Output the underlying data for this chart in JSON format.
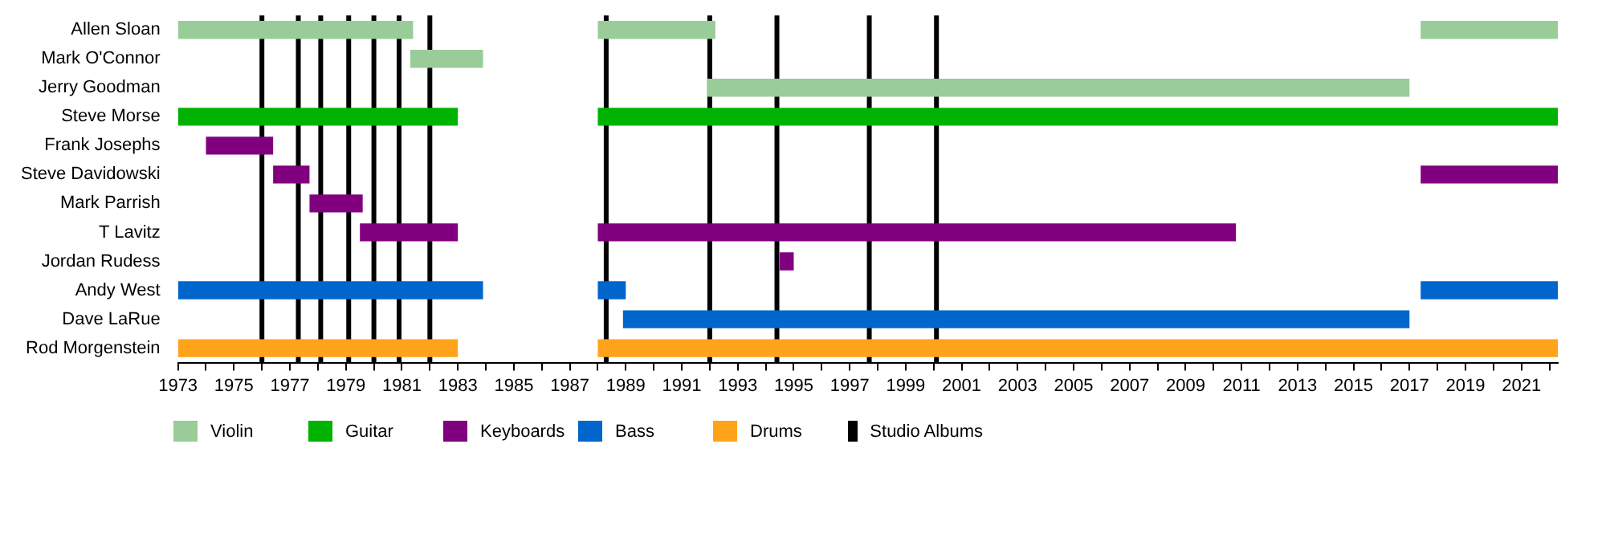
{
  "chart_data": {
    "type": "bar",
    "orientation": "horizontal",
    "legend": "bottom",
    "grid": false,
    "categories": [
      "Allen Sloan",
      "Mark O'Connor",
      "Jerry Goodman",
      "Steve Morse",
      "Frank Josephs",
      "Steve Davidowski",
      "Mark Parrish",
      "T Lavitz",
      "Jordan Rudess",
      "Andy West",
      "Dave LaRue",
      "Rod Morgenstein"
    ],
    "xlim": [
      1973,
      2022.3
    ],
    "xticks": [
      1973,
      {
        "value": 1974,
        "label": null
      },
      1975,
      {
        "value": 1976,
        "label": null
      },
      1977,
      {
        "value": 1978,
        "label": null
      },
      1979,
      {
        "value": 1980,
        "label": null
      },
      1981,
      {
        "value": 1982,
        "label": null
      },
      1983,
      {
        "value": 1984,
        "label": null
      },
      1985,
      {
        "value": 1986,
        "label": null
      },
      1987,
      {
        "value": 1988,
        "label": null
      },
      1989,
      {
        "value": 1990,
        "label": null
      },
      1991,
      {
        "value": 1992,
        "label": null
      },
      1993,
      {
        "value": 1994,
        "label": null
      },
      1995,
      {
        "value": 1996,
        "label": null
      },
      1997,
      {
        "value": 1998,
        "label": null
      },
      1999,
      {
        "value": 2000,
        "label": null
      },
      2001,
      {
        "value": 2002,
        "label": null
      },
      2003,
      {
        "value": 2004,
        "label": null
      },
      2005,
      {
        "value": 2006,
        "label": null
      },
      2007,
      {
        "value": 2008,
        "label": null
      },
      2009,
      {
        "value": 2010,
        "label": null
      },
      2011,
      {
        "value": 2012,
        "label": null
      },
      2013,
      {
        "value": 2014,
        "label": null
      },
      2015,
      {
        "value": 2016,
        "label": null
      },
      2017,
      {
        "value": 2018,
        "label": null
      },
      2019,
      {
        "value": 2020,
        "label": null
      },
      2021,
      {
        "value": 2022,
        "label": null
      }
    ],
    "series": [
      {
        "name": "Violin",
        "color": "#99cc99",
        "base": [
          1973,
          1981.3,
          1991.9,
          null,
          null,
          null,
          null,
          null,
          null,
          null,
          null,
          null
        ],
        "values": [
          8.4,
          2.6,
          25.1,
          null,
          null,
          null,
          null,
          null,
          null,
          null,
          null,
          null
        ]
      },
      {
        "color": "#99cc99",
        "base": [
          1988,
          null,
          null,
          null,
          null,
          null,
          null,
          null,
          null,
          null,
          null,
          null
        ],
        "values": [
          4.2,
          null,
          null,
          null,
          null,
          null,
          null,
          null,
          null,
          null,
          null,
          null
        ]
      },
      {
        "color": "#99cc99",
        "base": [
          2017.4,
          null,
          null,
          null,
          null,
          null,
          null,
          null,
          null,
          null,
          null,
          null
        ],
        "values": [
          4.9,
          null,
          null,
          null,
          null,
          null,
          null,
          null,
          null,
          null,
          null,
          null
        ]
      },
      {
        "name": "Guitar",
        "color": "#00b300",
        "base": [
          null,
          null,
          null,
          1973,
          null,
          null,
          null,
          null,
          null,
          null,
          null,
          null
        ],
        "values": [
          null,
          null,
          null,
          10.0,
          null,
          null,
          null,
          null,
          null,
          null,
          null,
          null
        ]
      },
      {
        "color": "#00b300",
        "base": [
          null,
          null,
          null,
          1988,
          null,
          null,
          null,
          null,
          null,
          null,
          null,
          null
        ],
        "values": [
          null,
          null,
          null,
          34.3,
          null,
          null,
          null,
          null,
          null,
          null,
          null,
          null
        ]
      },
      {
        "name": "Keyboards",
        "color": "#800080",
        "base": [
          null,
          null,
          null,
          null,
          1974,
          1976.4,
          1977.7,
          1979.5,
          1994.5,
          null,
          null,
          null
        ],
        "values": [
          null,
          null,
          null,
          null,
          2.4,
          1.3,
          1.9,
          3.5,
          0.5,
          null,
          null,
          null
        ]
      },
      {
        "color": "#800080",
        "base": [
          null,
          null,
          null,
          null,
          null,
          2017.4,
          null,
          1988,
          null,
          null,
          null,
          null
        ],
        "values": [
          null,
          null,
          null,
          null,
          null,
          4.9,
          null,
          22.8,
          null,
          null,
          null,
          null
        ]
      },
      {
        "name": "Bass",
        "color": "#0066cc",
        "base": [
          null,
          null,
          null,
          null,
          null,
          null,
          null,
          null,
          null,
          1973,
          1988.9,
          null
        ],
        "values": [
          null,
          null,
          null,
          null,
          null,
          null,
          null,
          null,
          null,
          10.9,
          28.1,
          null
        ]
      },
      {
        "color": "#0066cc",
        "base": [
          null,
          null,
          null,
          null,
          null,
          null,
          null,
          null,
          null,
          1988,
          null,
          null
        ],
        "values": [
          null,
          null,
          null,
          null,
          null,
          null,
          null,
          null,
          null,
          1.0,
          null,
          null
        ]
      },
      {
        "color": "#0066cc",
        "base": [
          null,
          null,
          null,
          null,
          null,
          null,
          null,
          null,
          null,
          2017.4,
          null,
          null
        ],
        "values": [
          null,
          null,
          null,
          null,
          null,
          null,
          null,
          null,
          null,
          4.9,
          null,
          null
        ]
      },
      {
        "name": "Drums",
        "color": "#ffa31a",
        "base": [
          null,
          null,
          null,
          null,
          null,
          null,
          null,
          null,
          null,
          null,
          null,
          1973
        ],
        "values": [
          null,
          null,
          null,
          null,
          null,
          null,
          null,
          null,
          null,
          null,
          null,
          10.0
        ]
      },
      {
        "color": "#ffa31a",
        "base": [
          null,
          null,
          null,
          null,
          null,
          null,
          null,
          null,
          null,
          null,
          null,
          1988
        ],
        "values": [
          null,
          null,
          null,
          null,
          null,
          null,
          null,
          null,
          null,
          null,
          null,
          34.3
        ]
      }
    ],
    "ref_lines": [
      {
        "axis": "x",
        "value": 1976.0,
        "label": "Studio Albums",
        "color": "#000000"
      },
      {
        "axis": "x",
        "value": 1977.3,
        "color": "#000000"
      },
      {
        "axis": "x",
        "value": 1978.1,
        "color": "#000000"
      },
      {
        "axis": "x",
        "value": 1979.1,
        "color": "#000000"
      },
      {
        "axis": "x",
        "value": 1980.0,
        "color": "#000000"
      },
      {
        "axis": "x",
        "value": 1980.9,
        "color": "#000000"
      },
      {
        "axis": "x",
        "value": 1982.0,
        "color": "#000000"
      },
      {
        "axis": "x",
        "value": 1988.3,
        "color": "#000000"
      },
      {
        "axis": "x",
        "value": 1992.0,
        "color": "#000000"
      },
      {
        "axis": "x",
        "value": 1994.4,
        "color": "#000000"
      },
      {
        "axis": "x",
        "value": 1997.7,
        "color": "#000000"
      },
      {
        "axis": "x",
        "value": 2000.1,
        "color": "#000000"
      }
    ]
  }
}
